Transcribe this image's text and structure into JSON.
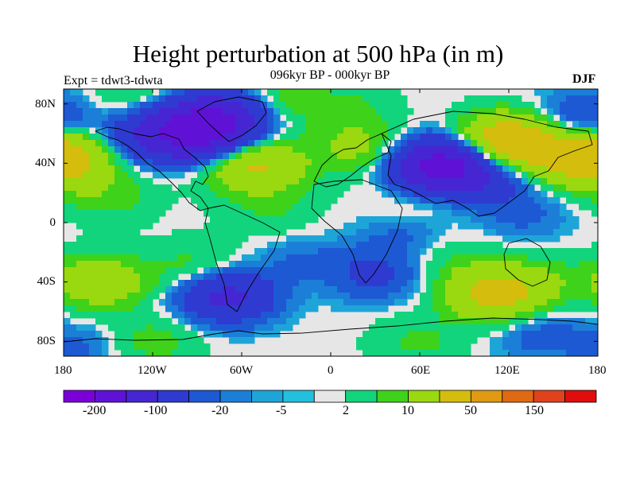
{
  "title": "Height perturbation at 500 hPa (in m)",
  "subtitle": "096kyr BP - 000kyr BP",
  "left_label": "Expt = tdwt3-tdwta",
  "right_label": "DJF",
  "lat_ticks": [
    "80N",
    "40N",
    "0",
    "40S",
    "80S"
  ],
  "lon_ticks": [
    "180",
    "120W",
    "60W",
    "0",
    "60E",
    "120E",
    "180"
  ],
  "colorbar": {
    "colors": [
      "#7a00d9",
      "#5f12d6",
      "#4626d2",
      "#2f3ad0",
      "#1e59d4",
      "#1b7fd8",
      "#1ea5d8",
      "#22c0dc",
      "#e6e6e6",
      "#12d47d",
      "#3fd21a",
      "#9ad80f",
      "#d4bd0d",
      "#e09910",
      "#e06a12",
      "#e0421c",
      "#e00d0d"
    ],
    "labels": [
      "-200",
      "-100",
      "-20",
      "-5",
      "2",
      "10",
      "50",
      "150"
    ]
  },
  "chart_data": {
    "type": "heatmap",
    "title": "Height perturbation at 500 hPa (in m)",
    "subtitle": "096kyr BP - 000kyr BP",
    "variable_units": "m",
    "season": "DJF",
    "xlim": [
      -180,
      180
    ],
    "ylim": [
      -90,
      90
    ],
    "x_ticks": [
      "180",
      "120W",
      "60W",
      "0",
      "60E",
      "120E",
      "180"
    ],
    "y_ticks": [
      "80N",
      "40N",
      "0",
      "40S",
      "80S"
    ],
    "levels": [
      -200,
      -100,
      -50,
      -20,
      -10,
      -5,
      -2,
      2,
      5,
      10,
      20,
      50,
      100,
      150,
      200
    ],
    "features": [
      {
        "lon": -90,
        "lat": 62,
        "value": -120
      },
      {
        "lon": -70,
        "lat": 73,
        "value": -60
      },
      {
        "lon": -50,
        "lat": 38,
        "value": 55
      },
      {
        "lon": -40,
        "lat": 82,
        "value": 20
      },
      {
        "lon": -178,
        "lat": 42,
        "value": 45
      },
      {
        "lon": -130,
        "lat": 85,
        "value": 12
      },
      {
        "lon": -150,
        "lat": 18,
        "value": 15
      },
      {
        "lon": -120,
        "lat": 58,
        "value": -40
      },
      {
        "lon": 10,
        "lat": 76,
        "value": 12
      },
      {
        "lon": 20,
        "lat": 50,
        "value": 25
      },
      {
        "lon": 120,
        "lat": 55,
        "value": 90
      },
      {
        "lon": 75,
        "lat": 38,
        "value": -130
      },
      {
        "lon": 105,
        "lat": 28,
        "value": -25
      },
      {
        "lon": 165,
        "lat": 44,
        "value": 55
      },
      {
        "lon": 168,
        "lat": 70,
        "value": -25
      },
      {
        "lon": 50,
        "lat": -8,
        "value": -12
      },
      {
        "lon": 130,
        "lat": 5,
        "value": -12
      },
      {
        "lon": -155,
        "lat": -40,
        "value": 40
      },
      {
        "lon": -90,
        "lat": -30,
        "value": 15
      },
      {
        "lon": -70,
        "lat": -50,
        "value": -60
      },
      {
        "lon": -20,
        "lat": -25,
        "value": -10
      },
      {
        "lon": 30,
        "lat": -35,
        "value": -25
      },
      {
        "lon": 80,
        "lat": -25,
        "value": 10
      },
      {
        "lon": 140,
        "lat": -40,
        "value": 15
      },
      {
        "lon": 110,
        "lat": -48,
        "value": 65
      },
      {
        "lon": 140,
        "lat": -75,
        "value": -15
      },
      {
        "lon": -120,
        "lat": -80,
        "value": 15
      },
      {
        "lon": 60,
        "lat": -80,
        "value": 12
      },
      {
        "lon": -170,
        "lat": -85,
        "value": -12
      },
      {
        "lon": -40,
        "lat": 8,
        "value": 10
      },
      {
        "lon": 60,
        "lat": 15,
        "value": 10
      }
    ]
  }
}
